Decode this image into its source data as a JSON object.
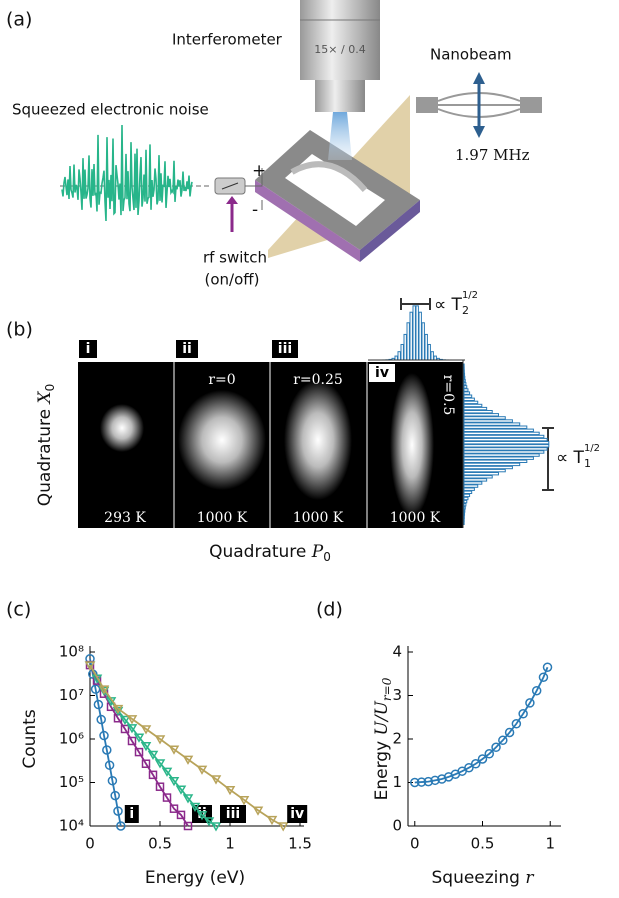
{
  "panel_labels": [
    "(a)",
    "(b)",
    "(c)",
    "(d)"
  ],
  "diagram": {
    "objective": "Interferometer",
    "objective_spec": "15× / 0.4",
    "noise": "Squeezed electronic noise",
    "plus": "+",
    "minus": "-",
    "switch": "rf switch",
    "switch_state": "(on/off)",
    "nanobeam": "Nanobeam",
    "frequency": "1.97 MHz"
  },
  "images": {
    "y_label": "Quadrature ",
    "y_var": "X",
    "y_sub": "0",
    "x_label": "Quadrature ",
    "x_var": "P",
    "x_sub": "0",
    "panels": [
      {
        "tag": "i",
        "temperature": "293 K"
      },
      {
        "tag": "ii",
        "r": "r=0",
        "temperature": "1000 K"
      },
      {
        "tag": "iii",
        "r": "r=0.25",
        "temperature": "1000 K"
      },
      {
        "tag": "iv",
        "r": "r=0.5",
        "temperature": "1000 K"
      }
    ],
    "t2": {
      "prefix": "∝ T",
      "sub": "2",
      "sup": "1/2"
    },
    "t1": {
      "prefix": "∝ T",
      "sub": "1",
      "sup": "1/2"
    }
  },
  "chart_data": [
    {
      "type": "line",
      "xlabel": "Energy (eV)",
      "ylabel": "Counts",
      "log_y": true,
      "xlim": [
        0,
        1.5
      ],
      "xticks": [
        0,
        0.5,
        1,
        1.5
      ],
      "ylim": [
        10000,
        100000000
      ],
      "yticks": [
        {
          "value": 10000,
          "label": "10⁴"
        },
        {
          "value": 100000,
          "label": "10⁵"
        },
        {
          "value": 1000000,
          "label": "10⁶"
        },
        {
          "value": 10000000,
          "label": "10⁷"
        },
        {
          "value": 100000000,
          "label": "10⁸"
        }
      ],
      "series": [
        {
          "name": "i",
          "color": "#2a7ab5",
          "marker": "circle",
          "x": [
            0,
            0.02,
            0.04,
            0.06,
            0.08,
            0.1,
            0.12,
            0.14,
            0.16,
            0.18,
            0.2,
            0.22
          ],
          "values": [
            70000000,
            31000000,
            14000000,
            6200000,
            2800000,
            1200000,
            560000,
            250000,
            110000,
            50000,
            22000,
            10000
          ]
        },
        {
          "name": "ii",
          "color": "#8b2a8b",
          "marker": "square",
          "x": [
            0,
            0.05,
            0.1,
            0.15,
            0.2,
            0.25,
            0.3,
            0.35,
            0.4,
            0.45,
            0.5,
            0.55,
            0.6,
            0.65,
            0.7
          ],
          "values": [
            50000000,
            22000000,
            11000000,
            5500000,
            3000000,
            1700000,
            900000,
            500000,
            270000,
            150000,
            80000,
            45000,
            25000,
            18000,
            10000
          ]
        },
        {
          "name": "iii",
          "color": "#2bb68a",
          "marker": "triangle",
          "x": [
            0,
            0.05,
            0.1,
            0.15,
            0.2,
            0.25,
            0.3,
            0.35,
            0.4,
            0.45,
            0.5,
            0.55,
            0.6,
            0.65,
            0.7,
            0.75,
            0.8,
            0.85,
            0.9
          ],
          "values": [
            50000000,
            25000000,
            13000000,
            7500000,
            4500000,
            2800000,
            1800000,
            1100000,
            700000,
            440000,
            280000,
            180000,
            110000,
            70000,
            44000,
            28000,
            18000,
            13000,
            10000
          ]
        },
        {
          "name": "iv",
          "color": "#b8a35a",
          "marker": "triangle",
          "x": [
            0,
            0.1,
            0.2,
            0.3,
            0.4,
            0.5,
            0.6,
            0.7,
            0.8,
            0.9,
            1.0,
            1.1,
            1.2,
            1.3,
            1.38
          ],
          "values": [
            50000000,
            14000000,
            5000000,
            2900000,
            1700000,
            1000000,
            580000,
            340000,
            200000,
            120000,
            68000,
            40000,
            23000,
            14000,
            10000
          ]
        }
      ]
    },
    {
      "type": "line",
      "xlabel": "Squeezing ",
      "xlabel_var": "r",
      "ylabel": "Energy ",
      "ylabel_var": "U/U",
      "ylabel_sub": "r=0",
      "xlim": [
        -0.05,
        1.05
      ],
      "xticks": [
        0,
        0.5,
        1
      ],
      "ylim": [
        0,
        4
      ],
      "yticks": [
        0,
        1,
        2,
        3,
        4
      ],
      "series": [
        {
          "color": "#2a7ab5",
          "marker": "circle",
          "x": [
            0,
            0.05,
            0.1,
            0.15,
            0.2,
            0.25,
            0.3,
            0.35,
            0.4,
            0.45,
            0.5,
            0.55,
            0.6,
            0.65,
            0.7,
            0.75,
            0.8,
            0.85,
            0.9,
            0.95,
            0.98
          ],
          "values": [
            1.0,
            1.01,
            1.02,
            1.05,
            1.08,
            1.13,
            1.19,
            1.26,
            1.34,
            1.43,
            1.54,
            1.66,
            1.81,
            1.97,
            2.15,
            2.35,
            2.58,
            2.83,
            3.11,
            3.42,
            3.65
          ]
        }
      ]
    }
  ]
}
